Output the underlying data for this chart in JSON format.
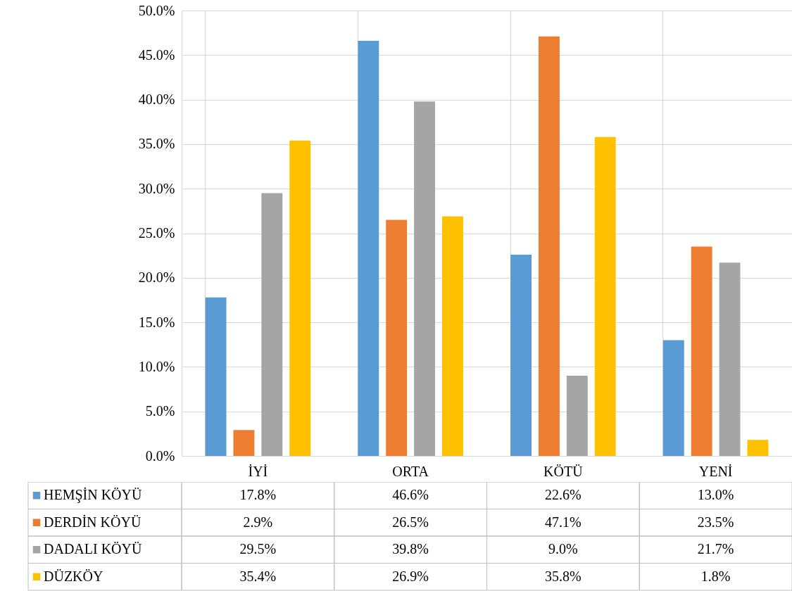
{
  "chart_data": {
    "type": "bar",
    "categories": [
      "İYİ",
      "ORTA",
      "KÖTÜ",
      "YENİ"
    ],
    "series": [
      {
        "name": "HEMŞİN KÖYÜ",
        "color": "#5b9bd5",
        "values": [
          17.8,
          46.6,
          22.6,
          13.0
        ],
        "value_labels": [
          "17.8%",
          "46.6%",
          "22.6%",
          "13.0%"
        ]
      },
      {
        "name": "DERDİN KÖYÜ",
        "color": "#ed7d31",
        "values": [
          2.9,
          26.5,
          47.1,
          23.5
        ],
        "value_labels": [
          "2.9%",
          "26.5%",
          "47.1%",
          "23.5%"
        ]
      },
      {
        "name": "DADALI KÖYÜ",
        "color": "#a5a5a5",
        "values": [
          29.5,
          39.8,
          9.0,
          21.7
        ],
        "value_labels": [
          "29.5%",
          "39.8%",
          "9.0%",
          "21.7%"
        ]
      },
      {
        "name": "DÜZKÖY",
        "color": "#ffc000",
        "values": [
          35.4,
          26.9,
          35.8,
          1.8
        ],
        "value_labels": [
          "35.4%",
          "26.9%",
          "35.8%",
          "1.8%"
        ]
      }
    ],
    "ylim": [
      0,
      50
    ],
    "yticks": [
      {
        "value": 0,
        "label": "0.0%"
      },
      {
        "value": 5,
        "label": "5.0%"
      },
      {
        "value": 10,
        "label": "10.0%"
      },
      {
        "value": 15,
        "label": "15.0%"
      },
      {
        "value": 20,
        "label": "20.0%"
      },
      {
        "value": 25,
        "label": "25.0%"
      },
      {
        "value": 30,
        "label": "30.0%"
      },
      {
        "value": 35,
        "label": "35.0%"
      },
      {
        "value": 40,
        "label": "40.0%"
      },
      {
        "value": 45,
        "label": "45.0%"
      },
      {
        "value": 50,
        "label": "50.0%"
      }
    ],
    "grid": true,
    "legend": "bottom left"
  }
}
